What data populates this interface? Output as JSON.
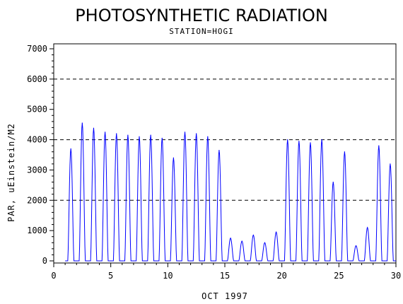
{
  "chart_data": {
    "type": "line",
    "title": "PHOTOSYNTHETIC RADIATION",
    "subtitle": "STATION=HOGI",
    "xlabel": "OCT 1997",
    "ylabel": "PAR, uEinstein/M2",
    "xlim": [
      0,
      30
    ],
    "ylim": [
      0,
      7000
    ],
    "x_ticks": [
      0,
      5,
      10,
      15,
      20,
      25,
      30
    ],
    "y_ticks": [
      0,
      1000,
      2000,
      3000,
      4000,
      5000,
      6000,
      7000
    ],
    "reference_lines": [
      2000,
      4000,
      6000
    ],
    "grid": false,
    "series_color": "#0000ff",
    "daily_peaks": [
      {
        "day": 1,
        "peak": 3700
      },
      {
        "day": 2,
        "peak": 4550
      },
      {
        "day": 3,
        "peak": 4380
      },
      {
        "day": 4,
        "peak": 4250
      },
      {
        "day": 5,
        "peak": 4200
      },
      {
        "day": 6,
        "peak": 4150
      },
      {
        "day": 7,
        "peak": 4100
      },
      {
        "day": 8,
        "peak": 4150
      },
      {
        "day": 9,
        "peak": 4050
      },
      {
        "day": 10,
        "peak": 3400
      },
      {
        "day": 11,
        "peak": 4250
      },
      {
        "day": 12,
        "peak": 4200
      },
      {
        "day": 13,
        "peak": 4100
      },
      {
        "day": 14,
        "peak": 3650
      },
      {
        "day": 15,
        "peak": 750
      },
      {
        "day": 16,
        "peak": 650
      },
      {
        "day": 17,
        "peak": 850
      },
      {
        "day": 18,
        "peak": 600
      },
      {
        "day": 19,
        "peak": 950
      },
      {
        "day": 20,
        "peak": 4000
      },
      {
        "day": 21,
        "peak": 3950
      },
      {
        "day": 22,
        "peak": 3900
      },
      {
        "day": 23,
        "peak": 4000
      },
      {
        "day": 24,
        "peak": 2600
      },
      {
        "day": 25,
        "peak": 3600
      },
      {
        "day": 26,
        "peak": 500
      },
      {
        "day": 27,
        "peak": 1100
      },
      {
        "day": 28,
        "peak": 3800
      },
      {
        "day": 29,
        "peak": 3200
      }
    ]
  }
}
